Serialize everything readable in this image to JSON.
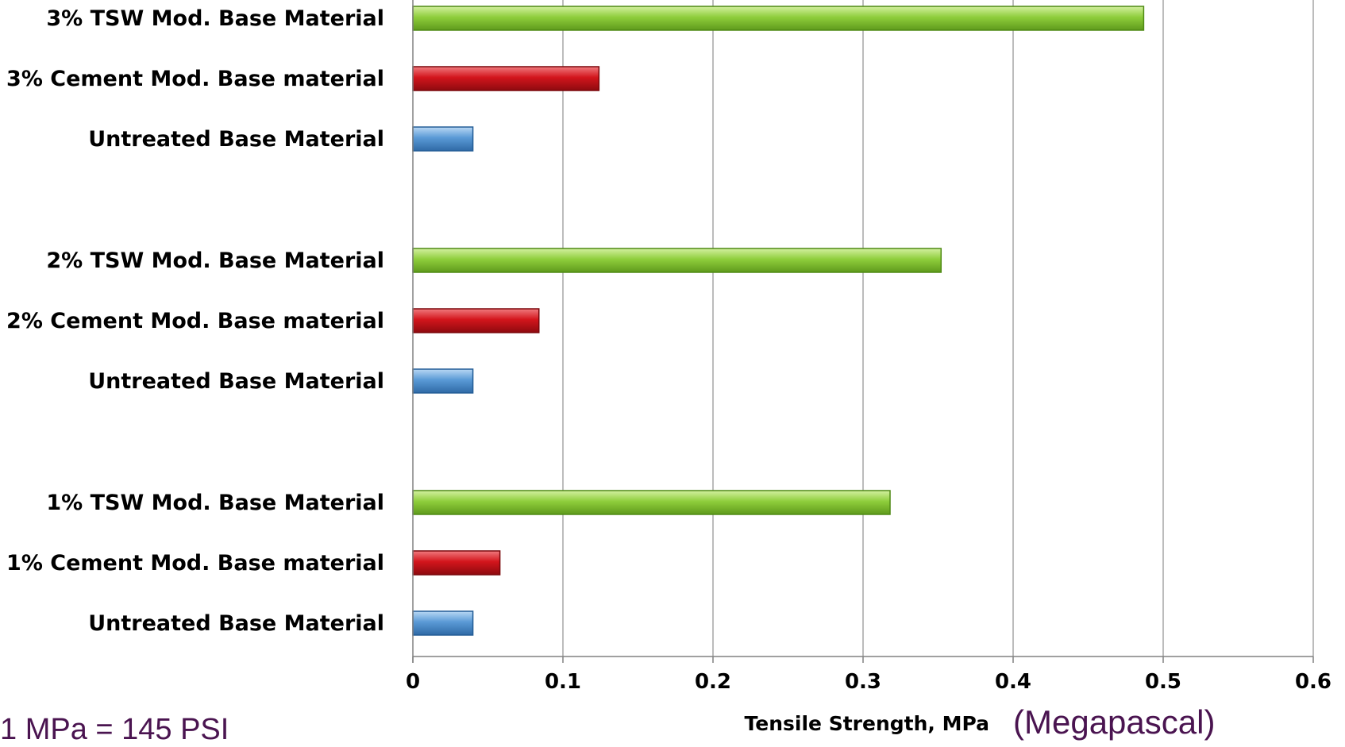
{
  "chart_data": {
    "type": "bar",
    "orientation": "horizontal",
    "categories": [
      "3% TSW Mod. Base Material",
      "3% Cement Mod. Base material",
      "Untreated Base Material",
      "2% TSW Mod. Base Material",
      "2% Cement Mod. Base material",
      "Untreated Base Material",
      "1% TSW Mod. Base Material",
      "1% Cement Mod. Base material",
      "Untreated Base Material"
    ],
    "values": [
      0.487,
      0.124,
      0.04,
      0.352,
      0.084,
      0.04,
      0.318,
      0.058,
      0.04
    ],
    "colors": [
      "#8fce3c",
      "#d3151c",
      "#5a9ad6",
      "#8fce3c",
      "#d3151c",
      "#5a9ad6",
      "#8fce3c",
      "#d3151c",
      "#5a9ad6"
    ],
    "groups": [
      [
        0,
        1,
        2
      ],
      [
        3,
        4,
        5
      ],
      [
        6,
        7,
        8
      ]
    ],
    "xlabel": "Tensile Strength, MPa",
    "xlabel_extra": "(Megapascal)",
    "xlim": [
      0,
      0.6
    ],
    "xticks": [
      0,
      0.1,
      0.2,
      0.3,
      0.4,
      0.5,
      0.6
    ],
    "xtick_labels": [
      "0",
      "0.1",
      "0.2",
      "0.3",
      "0.4",
      "0.5",
      "0.6"
    ],
    "grid": "vertical"
  },
  "footnote": "1 MPa =  145 PSI"
}
